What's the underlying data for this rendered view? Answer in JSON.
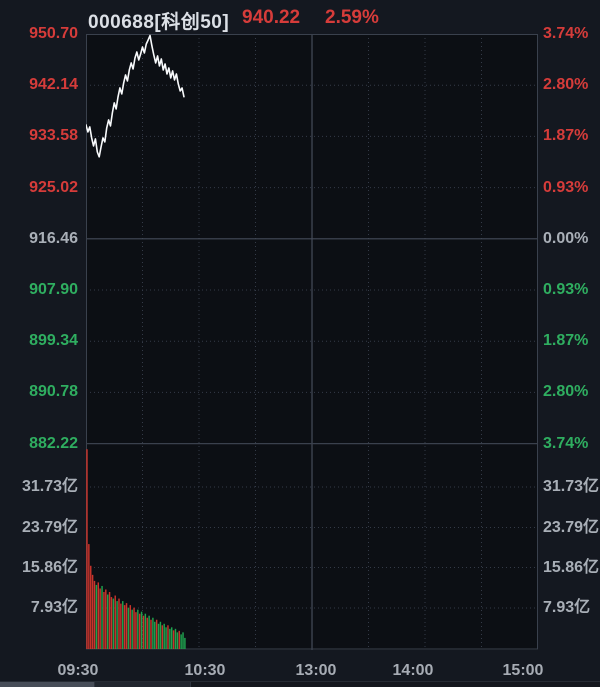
{
  "header": {
    "code_name": "000688[科创50]",
    "price": "940.22",
    "change_pct": "2.59%"
  },
  "colors": {
    "up_red": "#d63c3a",
    "down_green": "#2fae60",
    "flat_gray": "#a9afb7",
    "volume_text": "#a9afb7",
    "time_text": "#a7acb4",
    "title_text": "#dce0e6",
    "bar_up": "#c9342c",
    "bar_down": "#1fa24e",
    "price_line": "#f8fafc",
    "plot_bg": "#0c0f14",
    "page_bg": "#141820",
    "grid_dotted": "#343b48",
    "grid_solid": "#454c59",
    "border": "#3a414d"
  },
  "axes": {
    "price_labels": [
      {
        "text": "950.70",
        "tone": "up"
      },
      {
        "text": "942.14",
        "tone": "up"
      },
      {
        "text": "933.58",
        "tone": "up"
      },
      {
        "text": "925.02",
        "tone": "up"
      },
      {
        "text": "916.46",
        "tone": "flat"
      },
      {
        "text": "907.90",
        "tone": "down"
      },
      {
        "text": "899.34",
        "tone": "down"
      },
      {
        "text": "890.78",
        "tone": "down"
      },
      {
        "text": "882.22",
        "tone": "down"
      }
    ],
    "pct_labels": [
      {
        "text": "3.74%",
        "tone": "up"
      },
      {
        "text": "2.80%",
        "tone": "up"
      },
      {
        "text": "1.87%",
        "tone": "up"
      },
      {
        "text": "0.93%",
        "tone": "up"
      },
      {
        "text": "0.00%",
        "tone": "flat"
      },
      {
        "text": "0.93%",
        "tone": "down"
      },
      {
        "text": "1.87%",
        "tone": "down"
      },
      {
        "text": "2.80%",
        "tone": "down"
      },
      {
        "text": "3.74%",
        "tone": "down"
      }
    ],
    "volume_labels": [
      "31.73亿",
      "23.79亿",
      "15.86亿",
      "7.93亿"
    ],
    "time_labels": [
      "09:30",
      "10:30",
      "13:00",
      "14:00",
      "15:00"
    ]
  },
  "chart_data": {
    "type": "line",
    "title": "000688[科创50] intraday (分时)",
    "last_price": 940.22,
    "change_pct": 2.59,
    "prev_close": 916.46,
    "price_axis_ticks": [
      950.7,
      942.14,
      933.58,
      925.02,
      916.46,
      907.9,
      899.34,
      890.78,
      882.22
    ],
    "pct_axis_ticks": [
      "3.74%",
      "2.80%",
      "1.87%",
      "0.93%",
      "0.00%",
      "-0.93%",
      "-1.87%",
      "-2.80%",
      "-3.74%"
    ],
    "volume_axis_ticks_yi": [
      31.73,
      23.79,
      15.86,
      7.93
    ],
    "time_axis": [
      "09:30",
      "10:30",
      "13:00",
      "14:00",
      "15:00"
    ],
    "session_minutes_total": 240,
    "minutes_elapsed": 53,
    "price_ylim": [
      882.22,
      950.7
    ],
    "volume_ylim_yi": [
      0,
      39.66
    ],
    "grid": "dotted 30-min verticals, dotted price levels, solid prev-close line",
    "price_series": [
      935.5,
      934.33,
      935.17,
      933.33,
      931.99,
      933.16,
      930.99,
      930.16,
      931.83,
      933.33,
      932.66,
      935.0,
      936.34,
      935.33,
      937.51,
      939.18,
      938.17,
      940.18,
      941.68,
      940.68,
      942.52,
      943.85,
      942.85,
      944.69,
      945.86,
      944.85,
      946.69,
      947.69,
      946.36,
      947.36,
      948.53,
      947.53,
      949.03,
      949.7,
      950.45,
      948.7,
      947.19,
      945.86,
      947.03,
      945.36,
      946.52,
      944.69,
      945.69,
      944.02,
      945.02,
      943.35,
      944.52,
      943.02,
      944.02,
      942.35,
      941.18,
      941.68,
      940.22
    ],
    "volume_series_yi": [
      39.6,
      20.8,
      16.5,
      14.7,
      13.5,
      12.7,
      13.2,
      12.0,
      12.5,
      11.3,
      11.8,
      10.8,
      11.3,
      10.3,
      10.0,
      10.6,
      9.5,
      10.0,
      9.0,
      9.5,
      8.7,
      9.1,
      8.2,
      8.7,
      7.8,
      8.2,
      7.3,
      7.8,
      7.0,
      7.4,
      6.6,
      7.0,
      6.2,
      6.6,
      5.8,
      6.2,
      5.4,
      5.8,
      5.0,
      5.4,
      4.7,
      5.0,
      4.3,
      4.7,
      4.0,
      4.3,
      3.7,
      4.0,
      3.3,
      3.6,
      2.9,
      3.3,
      2.2
    ],
    "volume_bar_direction": [
      "u",
      "u",
      "u",
      "u",
      "u",
      "d",
      "u",
      "u",
      "d",
      "u",
      "u",
      "d",
      "u",
      "u",
      "d",
      "u",
      "d",
      "u",
      "u",
      "d",
      "u",
      "u",
      "d",
      "u",
      "d",
      "u",
      "u",
      "d",
      "u",
      "d",
      "u",
      "d",
      "u",
      "d",
      "u",
      "d",
      "d",
      "u",
      "d",
      "d",
      "u",
      "d",
      "d",
      "u",
      "d",
      "d",
      "u",
      "d",
      "d",
      "u",
      "d",
      "d",
      "d"
    ]
  }
}
